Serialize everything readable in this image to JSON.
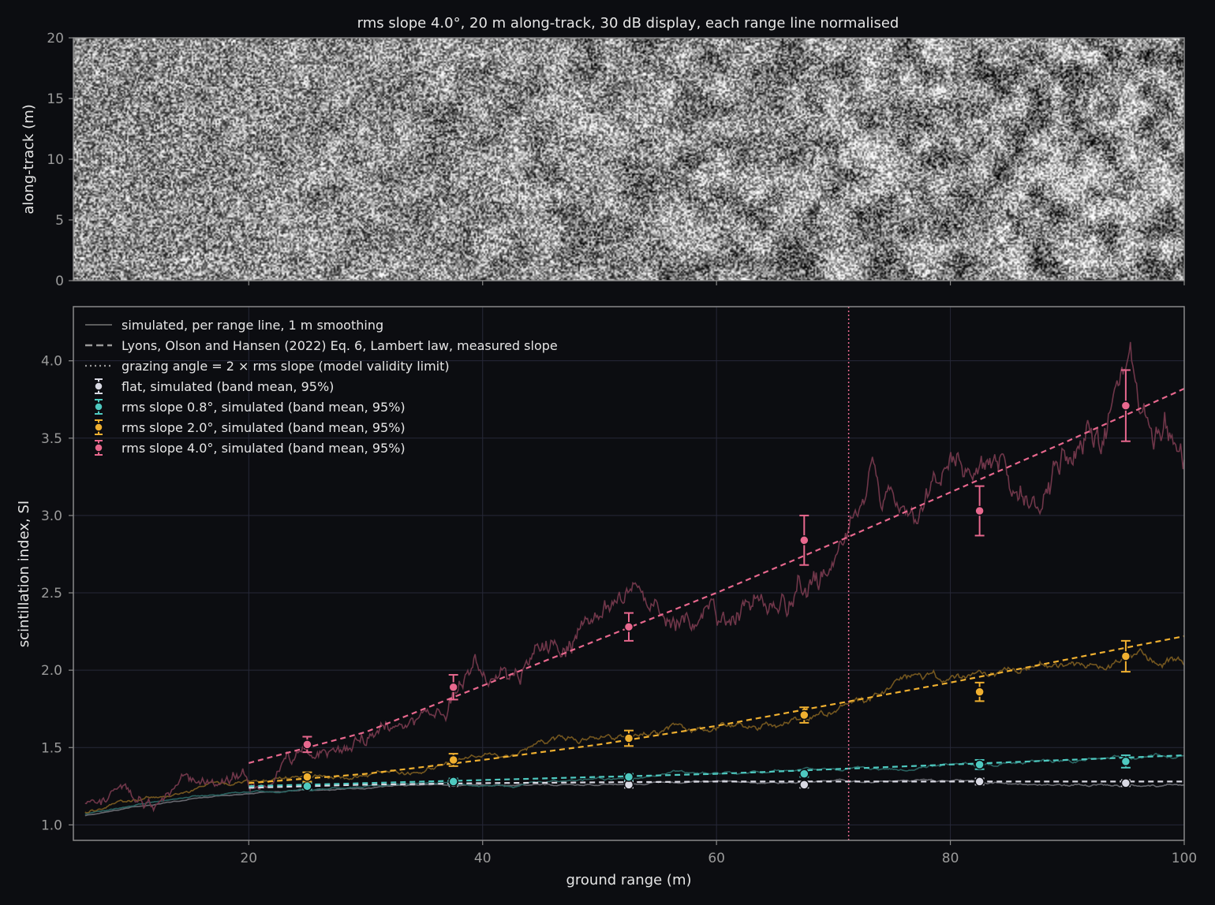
{
  "figure": {
    "background": "#0c0d11",
    "axes_color": "#8a8a8a",
    "grid_color": "#262838",
    "text_color": "#e6e6e6",
    "tick_color": "#9a9a9a"
  },
  "chart_data": [
    {
      "type": "heatmap",
      "title": "rms slope 4.0°, 20 m along-track, 30 dB display, each range line normalised",
      "xlabel": "",
      "ylabel": "along-track (m)",
      "xlim": [
        5,
        100
      ],
      "ylim": [
        0,
        20
      ],
      "yticks": [
        0,
        5,
        10,
        15,
        20
      ],
      "colormap": "grayscale",
      "description_values": {
        "dynamic_range_db": 30
      }
    },
    {
      "type": "line",
      "title": "",
      "xlabel": "ground range (m)",
      "ylabel": "scintillation index, SI",
      "xlim": [
        5,
        100
      ],
      "ylim": [
        0.9,
        4.35
      ],
      "xticks": [
        20,
        40,
        60,
        80,
        100
      ],
      "yticks": [
        1.0,
        1.5,
        2.0,
        2.5,
        3.0,
        3.5,
        4.0
      ],
      "grid": true,
      "legend_position": "upper-left",
      "legend": [
        {
          "label": "simulated, per range line, 1 m smoothing",
          "style": "thin-solid",
          "color": "#777777"
        },
        {
          "label": "Lyons, Olson and Hansen (2022) Eq. 6, Lambert law, measured slope",
          "style": "dashed",
          "color": "#9a9a9a"
        },
        {
          "label": "grazing angle = 2 × rms slope (model validity limit)",
          "style": "dotted",
          "color": "#9a9a9a"
        },
        {
          "label": "flat, simulated (band mean, 95%)",
          "style": "errorbar",
          "color": "#d9d9e3"
        },
        {
          "label": "rms slope 0.8°, simulated (band mean, 95%)",
          "style": "errorbar",
          "color": "#4ec9c0"
        },
        {
          "label": "rms slope 2.0°, simulated (band mean, 95%)",
          "style": "errorbar",
          "color": "#f0b030"
        },
        {
          "label": "rms slope 4.0°, simulated (band mean, 95%)",
          "style": "errorbar",
          "color": "#e8688e"
        }
      ],
      "vline_x": 71.3,
      "vline_color": "#e8688e",
      "series": [
        {
          "name": "flat",
          "color": "#d9d9e3",
          "model_x": [
            20,
            30,
            40,
            50,
            60,
            70,
            80,
            90,
            100
          ],
          "model_y": [
            1.24,
            1.26,
            1.27,
            1.275,
            1.28,
            1.28,
            1.28,
            1.28,
            1.28
          ],
          "sim_anchor_x": [
            6,
            10,
            15,
            20,
            30,
            40,
            50,
            60,
            70,
            80,
            90,
            100
          ],
          "sim_anchor_y": [
            1.06,
            1.12,
            1.17,
            1.2,
            1.24,
            1.26,
            1.27,
            1.27,
            1.27,
            1.27,
            1.27,
            1.27
          ],
          "sim_noise": 0.02,
          "band_x": [
            25,
            37.5,
            52.5,
            67.5,
            82.5,
            95
          ],
          "band_y": [
            1.25,
            1.27,
            1.26,
            1.26,
            1.28,
            1.27
          ],
          "band_err": [
            0.02,
            0.02,
            0.02,
            0.02,
            0.02,
            0.02
          ]
        },
        {
          "name": "rms slope 0.8°",
          "color": "#4ec9c0",
          "model_x": [
            20,
            30,
            40,
            50,
            60,
            70,
            80,
            90,
            100
          ],
          "model_y": [
            1.25,
            1.27,
            1.29,
            1.31,
            1.33,
            1.36,
            1.39,
            1.42,
            1.45
          ],
          "sim_anchor_x": [
            6,
            10,
            15,
            20,
            30,
            40,
            50,
            60,
            70,
            80,
            90,
            100
          ],
          "sim_anchor_y": [
            1.07,
            1.13,
            1.18,
            1.21,
            1.25,
            1.28,
            1.3,
            1.32,
            1.35,
            1.38,
            1.41,
            1.44
          ],
          "sim_noise": 0.03,
          "band_x": [
            25,
            37.5,
            52.5,
            67.5,
            82.5,
            95
          ],
          "band_y": [
            1.25,
            1.28,
            1.31,
            1.33,
            1.39,
            1.41
          ],
          "band_err": [
            0.02,
            0.02,
            0.02,
            0.02,
            0.03,
            0.04
          ]
        },
        {
          "name": "rms slope 2.0°",
          "color": "#f0b030",
          "model_x": [
            20,
            30,
            40,
            50,
            60,
            70,
            80,
            90,
            100
          ],
          "model_y": [
            1.27,
            1.33,
            1.42,
            1.52,
            1.64,
            1.78,
            1.92,
            2.07,
            2.22
          ],
          "sim_anchor_x": [
            6,
            10,
            15,
            20,
            30,
            40,
            50,
            60,
            70,
            80,
            90,
            100
          ],
          "sim_anchor_y": [
            1.08,
            1.14,
            1.19,
            1.25,
            1.33,
            1.43,
            1.53,
            1.62,
            1.78,
            1.88,
            2.05,
            2.1
          ],
          "sim_noise": 0.08,
          "band_x": [
            25,
            37.5,
            52.5,
            67.5,
            82.5,
            95
          ],
          "band_y": [
            1.31,
            1.42,
            1.56,
            1.71,
            1.86,
            2.09
          ],
          "band_err": [
            0.03,
            0.04,
            0.05,
            0.05,
            0.06,
            0.1
          ]
        },
        {
          "name": "rms slope 4.0°",
          "color": "#e8688e",
          "model_x": [
            20,
            30,
            40,
            50,
            60,
            70,
            80,
            90,
            100
          ],
          "model_y": [
            1.4,
            1.6,
            1.9,
            2.2,
            2.5,
            2.82,
            3.15,
            3.48,
            3.82
          ],
          "sim_anchor_x": [
            6,
            10,
            15,
            20,
            30,
            40,
            50,
            60,
            70,
            80,
            90,
            100
          ],
          "sim_anchor_y": [
            1.12,
            1.2,
            1.27,
            1.4,
            1.6,
            1.95,
            2.2,
            2.5,
            2.9,
            3.1,
            3.4,
            3.6
          ],
          "sim_noise": 0.35,
          "band_x": [
            25,
            37.5,
            52.5,
            67.5,
            82.5,
            95
          ],
          "band_y": [
            1.52,
            1.89,
            2.28,
            2.84,
            3.03,
            3.71
          ],
          "band_err": [
            0.05,
            0.08,
            0.09,
            0.16,
            0.16,
            0.23
          ]
        }
      ]
    }
  ]
}
